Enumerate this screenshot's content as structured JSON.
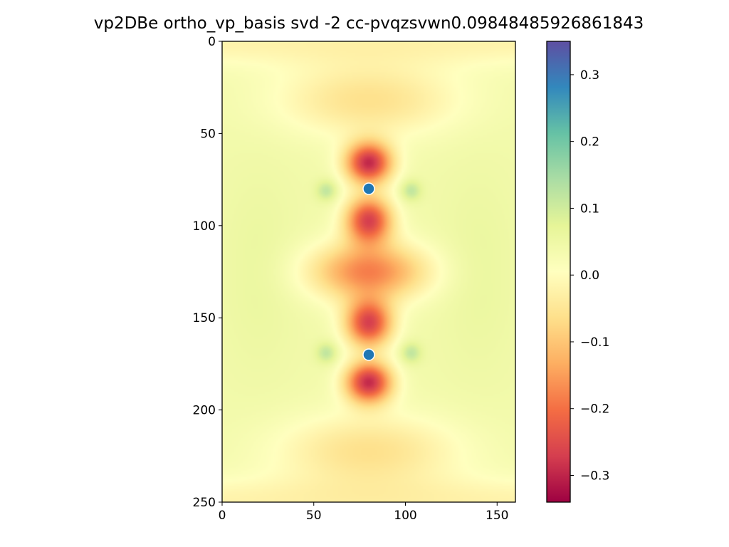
{
  "chart_data": {
    "type": "heatmap",
    "title": "vp2DBe ortho_vp_basis svd -2 cc-pvqzsvwn0.09848485926861843",
    "xlim": [
      0,
      160
    ],
    "ylim": [
      250,
      0
    ],
    "xticks": [
      "0",
      "50",
      "100",
      "150"
    ],
    "xtick_values": [
      0,
      50,
      100,
      150
    ],
    "yticks": [
      "0",
      "50",
      "100",
      "150",
      "200",
      "250"
    ],
    "ytick_values": [
      0,
      50,
      100,
      150,
      200,
      250
    ],
    "colorbar": {
      "colormap": "Spectral",
      "range": [
        -0.34,
        0.35
      ],
      "ticks": [
        "0.3",
        "0.2",
        "0.1",
        "0.0",
        "−0.1",
        "−0.2",
        "−0.3"
      ],
      "tick_values": [
        0.3,
        0.2,
        0.1,
        0.0,
        -0.1,
        -0.2,
        -0.3
      ]
    },
    "markers": [
      {
        "x": 80,
        "y": 80,
        "color": "#1f77b4"
      },
      {
        "x": 80,
        "y": 170,
        "color": "#1f77b4"
      }
    ],
    "field_features": [
      {
        "x": 80,
        "y": 65,
        "value": -0.33
      },
      {
        "x": 80,
        "y": 97,
        "value": -0.28
      },
      {
        "x": 80,
        "y": 125,
        "value": -0.2
      },
      {
        "x": 80,
        "y": 153,
        "value": -0.28
      },
      {
        "x": 80,
        "y": 185,
        "value": -0.33
      },
      {
        "x": 57,
        "y": 81,
        "value": 0.12
      },
      {
        "x": 103,
        "y": 81,
        "value": 0.12
      },
      {
        "x": 57,
        "y": 169,
        "value": 0.12
      },
      {
        "x": 103,
        "y": 169,
        "value": 0.12
      },
      {
        "x": 80,
        "y": 32,
        "value": -0.07
      },
      {
        "x": 80,
        "y": 222,
        "value": -0.07
      },
      {
        "x": 20,
        "y": 125,
        "value": 0.05
      },
      {
        "x": 140,
        "y": 125,
        "value": 0.05
      }
    ]
  }
}
